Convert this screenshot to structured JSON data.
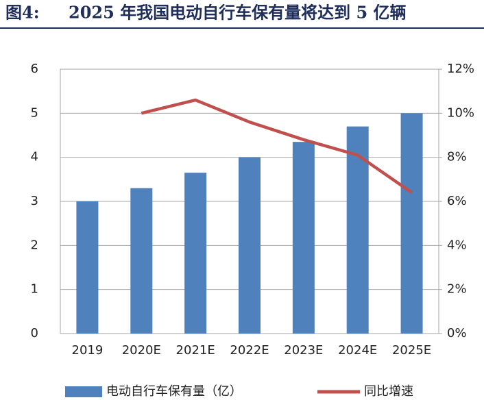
{
  "chart_data": {
    "type": "bar-line",
    "figure_label": "图4:",
    "title": "2025 年我国电动自行车保有量将达到 5 亿辆",
    "categories": [
      "2019",
      "2020E",
      "2021E",
      "2022E",
      "2023E",
      "2024E",
      "2025E"
    ],
    "series": [
      {
        "name": "电动自行车保有量（亿）",
        "type": "bar",
        "color": "#4f81bd",
        "values": [
          3.0,
          3.3,
          3.65,
          4.0,
          4.35,
          4.7,
          5.0
        ]
      },
      {
        "name": "同比增速",
        "type": "line",
        "color": "#c0504d",
        "axis": "y2",
        "values": [
          null,
          10.0,
          10.6,
          9.6,
          8.8,
          8.1,
          6.4
        ]
      }
    ],
    "ylim": [
      0,
      6
    ],
    "yticks": [
      0,
      1,
      2,
      3,
      4,
      5,
      6
    ],
    "y2lim": [
      0,
      12
    ],
    "y2ticks": [
      {
        "value": 0,
        "label": "0%"
      },
      {
        "value": 2,
        "label": "2%"
      },
      {
        "value": 4,
        "label": "4%"
      },
      {
        "value": 6,
        "label": "6%"
      },
      {
        "value": 8,
        "label": "8%"
      },
      {
        "value": 10,
        "label": "10%"
      },
      {
        "value": 12,
        "label": "12%"
      }
    ],
    "grid": true
  }
}
